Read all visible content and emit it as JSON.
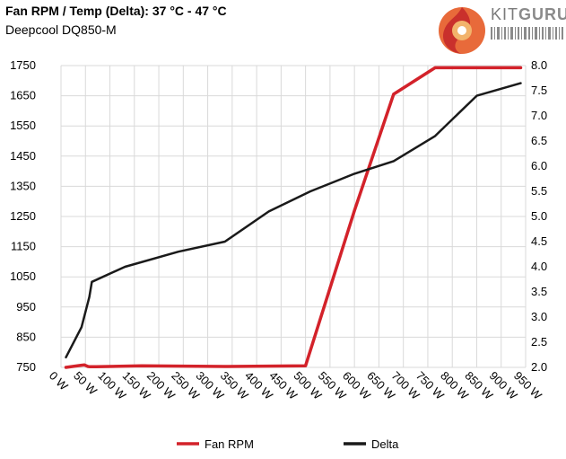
{
  "header": {
    "title": "Fan RPM / Temp (Delta): 37 °C - 47 °C",
    "subtitle": "Deepcool DQ850-M"
  },
  "logo": {
    "text_kit": "KIT",
    "text_guru": "GURU"
  },
  "colors": {
    "fan_rpm": "#d3222a",
    "delta": "#1a1a1a",
    "grid": "#d9d9d9"
  },
  "chart_data": {
    "type": "line",
    "x_categories": [
      "0 W",
      "50 W",
      "100 W",
      "150 W",
      "200 W",
      "250 W",
      "300 W",
      "350 W",
      "400 W",
      "450 W",
      "500 W",
      "550 W",
      "600 W",
      "650 W",
      "700 W",
      "750 W",
      "800 W",
      "850 W",
      "900 W",
      "950 W"
    ],
    "y_left": {
      "ylim": [
        750,
        1750
      ],
      "ticks": [
        750,
        850,
        950,
        1050,
        1150,
        1250,
        1350,
        1450,
        1550,
        1650,
        1750
      ]
    },
    "y_right": {
      "ylim": [
        2.0,
        8.0
      ],
      "ticks": [
        "2.0",
        "2.5",
        "3.0",
        "3.5",
        "4.0",
        "4.5",
        "5.0",
        "5.5",
        "6.0",
        "6.5",
        "7.0",
        "7.5",
        "8.0"
      ]
    },
    "grid": true,
    "legend_position": "bottom",
    "series": [
      {
        "name": "Fan RPM",
        "axis": "left",
        "points": [
          [
            10,
            750
          ],
          [
            42,
            757
          ],
          [
            48,
            758
          ],
          [
            55,
            753
          ],
          [
            59,
            752
          ],
          [
            72,
            752
          ],
          [
            165,
            755
          ],
          [
            335,
            753
          ],
          [
            500,
            755
          ],
          [
            600,
            1270
          ],
          [
            680,
            1655
          ],
          [
            765,
            1743
          ],
          [
            940,
            1743
          ]
        ]
      },
      {
        "name": "Delta",
        "axis": "right",
        "points": [
          [
            10,
            2.2
          ],
          [
            42,
            2.8
          ],
          [
            58,
            3.4
          ],
          [
            63,
            3.7
          ],
          [
            131,
            4.0
          ],
          [
            240,
            4.3
          ],
          [
            335,
            4.5
          ],
          [
            425,
            5.1
          ],
          [
            510,
            5.5
          ],
          [
            600,
            5.85
          ],
          [
            680,
            6.1
          ],
          [
            765,
            6.6
          ],
          [
            850,
            7.4
          ],
          [
            940,
            7.65
          ]
        ]
      }
    ]
  }
}
